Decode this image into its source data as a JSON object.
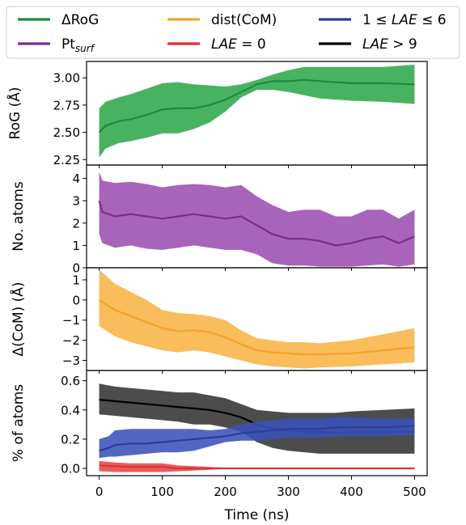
{
  "legend": {
    "entries": [
      {
        "label": "ΔRoG",
        "color": "#1e8a3c"
      },
      {
        "label": "Pt",
        "sub": "surf",
        "color": "#7b2d8f"
      },
      {
        "label": "dist(CoM)",
        "color": "#f4a32a"
      },
      {
        "label": "LAE = 0",
        "color": "#e03030"
      },
      {
        "label": "1 ≤ LAE ≤ 6",
        "color": "#2c3e9a"
      },
      {
        "label": "LAE > 9",
        "color": "#000000"
      }
    ]
  },
  "xaxis": {
    "label": "Time (ns)",
    "ticks": [
      "0",
      "100",
      "200",
      "300",
      "400",
      "500"
    ],
    "range": [
      -20,
      520
    ]
  },
  "chart_data": [
    {
      "type": "area",
      "ylabel": "RoG (Å)",
      "ylim": [
        2.2,
        3.15
      ],
      "yticks": [
        "2.25",
        "2.50",
        "2.75",
        "3.00"
      ],
      "series": [
        {
          "name": "ΔRoG",
          "color": "#1e8a3c",
          "band_color": "#2ea84a",
          "x": [
            0,
            10,
            30,
            50,
            75,
            100,
            125,
            150,
            175,
            200,
            225,
            250,
            275,
            300,
            325,
            350,
            400,
            450,
            500
          ],
          "mean": [
            2.5,
            2.56,
            2.6,
            2.62,
            2.66,
            2.71,
            2.72,
            2.72,
            2.75,
            2.8,
            2.87,
            2.94,
            2.97,
            2.97,
            2.98,
            2.97,
            2.95,
            2.95,
            2.94
          ],
          "upper": [
            2.72,
            2.78,
            2.82,
            2.85,
            2.9,
            2.95,
            2.96,
            2.94,
            2.93,
            2.92,
            2.94,
            2.98,
            3.03,
            3.07,
            3.1,
            3.1,
            3.1,
            3.1,
            3.12
          ],
          "lower": [
            2.27,
            2.35,
            2.4,
            2.42,
            2.45,
            2.49,
            2.49,
            2.53,
            2.59,
            2.69,
            2.82,
            2.89,
            2.89,
            2.87,
            2.84,
            2.81,
            2.79,
            2.78,
            2.76
          ]
        }
      ]
    },
    {
      "type": "area",
      "ylabel": "No. atoms",
      "ylim": [
        0,
        4.6
      ],
      "yticks": [
        "0",
        "1",
        "2",
        "3",
        "4"
      ],
      "series": [
        {
          "name": "Pt_surf",
          "color": "#7b2d8f",
          "band_color": "#9b4eb0",
          "x": [
            0,
            5,
            25,
            50,
            75,
            100,
            125,
            150,
            175,
            200,
            225,
            250,
            275,
            300,
            325,
            350,
            375,
            400,
            425,
            450,
            475,
            500
          ],
          "mean": [
            3.0,
            2.5,
            2.3,
            2.4,
            2.3,
            2.2,
            2.3,
            2.4,
            2.3,
            2.2,
            2.3,
            1.9,
            1.5,
            1.3,
            1.3,
            1.2,
            1.0,
            1.1,
            1.3,
            1.4,
            1.1,
            1.4
          ],
          "upper": [
            4.3,
            3.9,
            3.8,
            3.85,
            3.75,
            3.6,
            3.7,
            3.75,
            3.7,
            3.6,
            3.7,
            3.2,
            2.8,
            2.5,
            2.6,
            2.6,
            2.3,
            2.3,
            2.6,
            2.6,
            2.2,
            2.6
          ],
          "lower": [
            1.5,
            1.1,
            0.9,
            1.0,
            0.85,
            0.8,
            0.9,
            1.0,
            0.9,
            0.8,
            0.8,
            0.6,
            0.2,
            0.1,
            0.1,
            0.05,
            0.05,
            0.05,
            0.1,
            0.15,
            0.05,
            0.15
          ]
        }
      ]
    },
    {
      "type": "area",
      "ylabel": "Δ(CoM) (Å)",
      "ylim": [
        -3.5,
        1.6
      ],
      "yticks": [
        "1",
        "0",
        "−1",
        "−2",
        "−3"
      ],
      "ytick_values": [
        1,
        0,
        -1,
        -2,
        -3
      ],
      "series": [
        {
          "name": "dist(CoM)",
          "color": "#f4a32a",
          "band_color": "#f8b444",
          "x": [
            0,
            25,
            50,
            75,
            100,
            125,
            150,
            175,
            200,
            225,
            250,
            275,
            300,
            325,
            350,
            400,
            450,
            500
          ],
          "mean": [
            0.0,
            -0.5,
            -0.8,
            -1.1,
            -1.4,
            -1.55,
            -1.5,
            -1.6,
            -1.85,
            -2.2,
            -2.5,
            -2.6,
            -2.65,
            -2.7,
            -2.7,
            -2.65,
            -2.5,
            -2.35
          ],
          "upper": [
            1.5,
            0.8,
            0.4,
            0.0,
            -0.5,
            -0.65,
            -0.7,
            -0.8,
            -1.0,
            -1.5,
            -1.9,
            -2.0,
            -2.1,
            -2.1,
            -2.15,
            -2.0,
            -1.7,
            -1.4
          ],
          "lower": [
            -1.3,
            -1.8,
            -2.1,
            -2.3,
            -2.5,
            -2.6,
            -2.5,
            -2.6,
            -2.8,
            -3.0,
            -3.2,
            -3.3,
            -3.35,
            -3.4,
            -3.35,
            -3.3,
            -3.2,
            -3.1
          ]
        }
      ]
    },
    {
      "type": "area",
      "ylabel": "% of atoms",
      "ylim": [
        -0.05,
        0.67
      ],
      "yticks": [
        "0.0",
        "0.2",
        "0.4",
        "0.6"
      ],
      "series": [
        {
          "name": "LAE = 0",
          "color": "#e03030",
          "band_color": "#e84444",
          "x": [
            0,
            25,
            50,
            75,
            100,
            125,
            150,
            175,
            200,
            250,
            300,
            400,
            500
          ],
          "mean": [
            0.02,
            0.015,
            0.01,
            0.01,
            0.01,
            0.0,
            0.0,
            0.0,
            0.0,
            0.0,
            0.0,
            0.0,
            0.0
          ],
          "upper": [
            0.05,
            0.04,
            0.035,
            0.035,
            0.035,
            0.02,
            0.015,
            0.01,
            0.003,
            0.0,
            0.0,
            0.0,
            0.0
          ],
          "lower": [
            -0.02,
            -0.025,
            -0.025,
            -0.025,
            -0.025,
            -0.02,
            -0.015,
            -0.01,
            -0.003,
            0.0,
            0.0,
            0.0,
            0.0
          ]
        },
        {
          "name": "LAE > 9",
          "color": "#000000",
          "band_color": "#333333",
          "x": [
            0,
            25,
            50,
            75,
            100,
            125,
            150,
            175,
            200,
            225,
            250,
            275,
            300,
            325,
            350,
            375,
            400,
            450,
            500
          ],
          "mean": [
            0.47,
            0.46,
            0.45,
            0.44,
            0.43,
            0.42,
            0.41,
            0.4,
            0.38,
            0.35,
            0.3,
            0.27,
            0.26,
            0.25,
            0.25,
            0.24,
            0.25,
            0.25,
            0.25
          ],
          "upper": [
            0.58,
            0.56,
            0.55,
            0.54,
            0.53,
            0.52,
            0.52,
            0.5,
            0.48,
            0.44,
            0.4,
            0.39,
            0.38,
            0.38,
            0.38,
            0.38,
            0.39,
            0.4,
            0.41
          ],
          "lower": [
            0.37,
            0.36,
            0.35,
            0.34,
            0.33,
            0.32,
            0.3,
            0.3,
            0.28,
            0.25,
            0.18,
            0.14,
            0.12,
            0.11,
            0.1,
            0.1,
            0.1,
            0.1,
            0.1
          ]
        },
        {
          "name": "1 ≤ LAE ≤ 6",
          "color": "#2c3e9a",
          "band_color": "#3a52b8",
          "x": [
            0,
            15,
            25,
            50,
            75,
            100,
            125,
            150,
            175,
            200,
            225,
            250,
            275,
            300,
            325,
            350,
            375,
            400,
            450,
            500
          ],
          "mean": [
            0.12,
            0.14,
            0.16,
            0.17,
            0.17,
            0.18,
            0.19,
            0.2,
            0.21,
            0.22,
            0.24,
            0.25,
            0.26,
            0.27,
            0.27,
            0.27,
            0.28,
            0.28,
            0.28,
            0.29
          ],
          "upper": [
            0.2,
            0.22,
            0.26,
            0.27,
            0.27,
            0.27,
            0.27,
            0.27,
            0.26,
            0.27,
            0.3,
            0.32,
            0.33,
            0.34,
            0.34,
            0.34,
            0.35,
            0.35,
            0.34,
            0.34
          ],
          "lower": [
            0.07,
            0.08,
            0.08,
            0.09,
            0.1,
            0.11,
            0.11,
            0.12,
            0.15,
            0.18,
            0.19,
            0.19,
            0.2,
            0.21,
            0.21,
            0.21,
            0.22,
            0.22,
            0.22,
            0.23
          ]
        }
      ]
    }
  ]
}
